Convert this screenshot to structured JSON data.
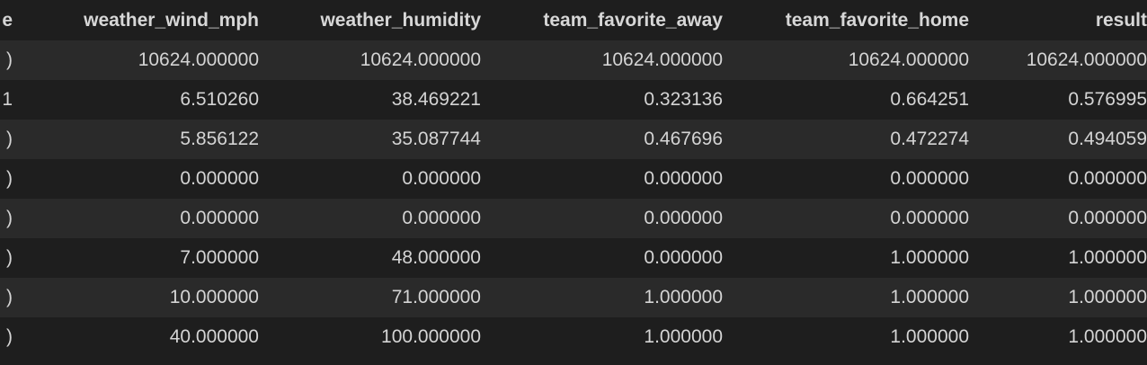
{
  "table": {
    "index_header_fragment": "e",
    "columns": [
      "weather_wind_mph",
      "weather_humidity",
      "team_favorite_away",
      "team_favorite_home",
      "result"
    ],
    "rows": [
      {
        "index": ")",
        "cells": [
          "10624.000000",
          "10624.000000",
          "10624.000000",
          "10624.000000",
          "10624.000000"
        ]
      },
      {
        "index": "1",
        "cells": [
          "6.510260",
          "38.469221",
          "0.323136",
          "0.664251",
          "0.576995"
        ]
      },
      {
        "index": ")",
        "cells": [
          "5.856122",
          "35.087744",
          "0.467696",
          "0.472274",
          "0.494059"
        ]
      },
      {
        "index": ")",
        "cells": [
          "0.000000",
          "0.000000",
          "0.000000",
          "0.000000",
          "0.000000"
        ]
      },
      {
        "index": ")",
        "cells": [
          "0.000000",
          "0.000000",
          "0.000000",
          "0.000000",
          "0.000000"
        ]
      },
      {
        "index": ")",
        "cells": [
          "7.000000",
          "48.000000",
          "0.000000",
          "1.000000",
          "1.000000"
        ]
      },
      {
        "index": ")",
        "cells": [
          "10.000000",
          "71.000000",
          "1.000000",
          "1.000000",
          "1.000000"
        ]
      },
      {
        "index": ")",
        "cells": [
          "40.000000",
          "100.000000",
          "1.000000",
          "1.000000",
          "1.000000"
        ]
      }
    ]
  }
}
